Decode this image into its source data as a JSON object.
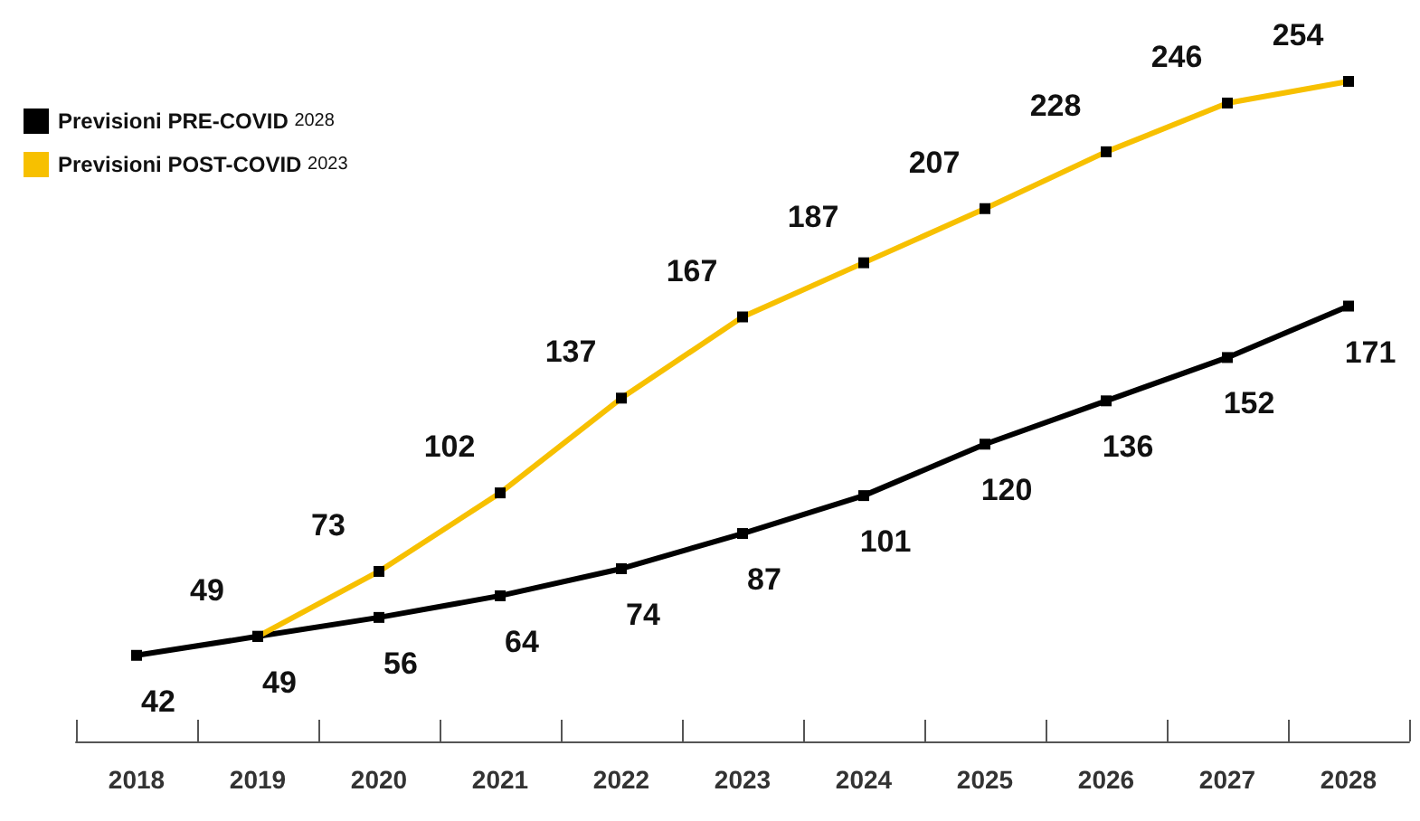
{
  "chart_data": {
    "type": "line",
    "categories": [
      "2018",
      "2019",
      "2020",
      "2021",
      "2022",
      "2023",
      "2024",
      "2025",
      "2026",
      "2027",
      "2028"
    ],
    "series": [
      {
        "name": "Previsioni PRE-COVID 2028",
        "color": "#000000",
        "values": [
          42,
          49,
          56,
          64,
          74,
          87,
          101,
          120,
          136,
          152,
          171
        ]
      },
      {
        "name": "Previsioni POST-COVID 2023",
        "color": "#f7c000",
        "values": [
          null,
          49,
          73,
          102,
          137,
          167,
          187,
          207,
          228,
          246,
          254
        ]
      }
    ],
    "tick_labels": "x",
    "data_labels": true,
    "legend": "top left",
    "marker": "square",
    "grid": false
  }
}
